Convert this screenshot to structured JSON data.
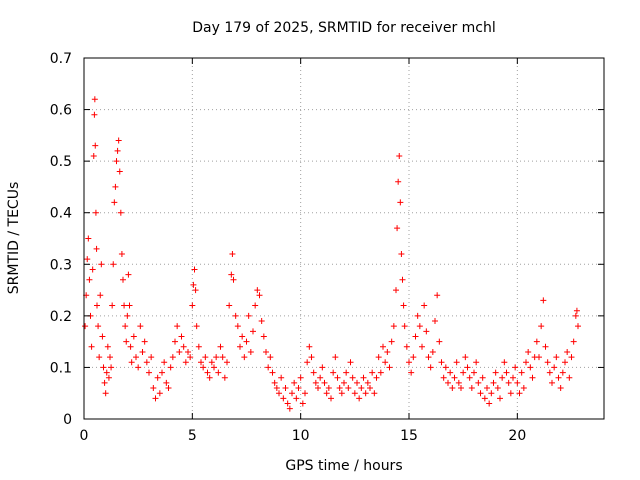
{
  "chart_data": {
    "type": "scatter",
    "title": "Day 179 of 2025, SRMTID for receiver mchl",
    "xlabel": "GPS time / hours",
    "ylabel": "SRMTID / TECUs",
    "xlim": [
      0,
      24
    ],
    "ylim": [
      0,
      0.7
    ],
    "xticks": [
      0,
      5,
      10,
      15,
      20
    ],
    "xtick_labels": [
      "0",
      "5",
      "10",
      "15",
      "20"
    ],
    "yticks": [
      0,
      0.1,
      0.2,
      0.3,
      0.4,
      0.5,
      0.6,
      0.7
    ],
    "ytick_labels": [
      "0",
      "0.1",
      "0.2",
      "0.3",
      "0.4",
      "0.5",
      "0.6",
      "0.7"
    ],
    "grid": true,
    "marker": "+",
    "marker_color": "#ff0000",
    "series": [
      {
        "name": "SRMTID",
        "points": [
          [
            0.05,
            0.18
          ],
          [
            0.1,
            0.24
          ],
          [
            0.15,
            0.31
          ],
          [
            0.2,
            0.35
          ],
          [
            0.25,
            0.27
          ],
          [
            0.3,
            0.2
          ],
          [
            0.35,
            0.14
          ],
          [
            0.4,
            0.29
          ],
          [
            0.45,
            0.51
          ],
          [
            0.48,
            0.59
          ],
          [
            0.5,
            0.62
          ],
          [
            0.52,
            0.53
          ],
          [
            0.55,
            0.4
          ],
          [
            0.58,
            0.33
          ],
          [
            0.6,
            0.22
          ],
          [
            0.65,
            0.18
          ],
          [
            0.7,
            0.12
          ],
          [
            0.75,
            0.24
          ],
          [
            0.8,
            0.3
          ],
          [
            0.85,
            0.16
          ],
          [
            0.9,
            0.1
          ],
          [
            0.95,
            0.07
          ],
          [
            1.0,
            0.05
          ],
          [
            1.05,
            0.09
          ],
          [
            1.1,
            0.14
          ],
          [
            1.15,
            0.08
          ],
          [
            1.2,
            0.12
          ],
          [
            1.25,
            0.1
          ],
          [
            1.3,
            0.22
          ],
          [
            1.35,
            0.3
          ],
          [
            1.4,
            0.42
          ],
          [
            1.45,
            0.45
          ],
          [
            1.5,
            0.5
          ],
          [
            1.55,
            0.52
          ],
          [
            1.6,
            0.54
          ],
          [
            1.65,
            0.48
          ],
          [
            1.7,
            0.4
          ],
          [
            1.75,
            0.32
          ],
          [
            1.8,
            0.27
          ],
          [
            1.85,
            0.22
          ],
          [
            1.9,
            0.18
          ],
          [
            1.95,
            0.15
          ],
          [
            2.0,
            0.2
          ],
          [
            2.05,
            0.28
          ],
          [
            2.1,
            0.22
          ],
          [
            2.15,
            0.14
          ],
          [
            2.2,
            0.11
          ],
          [
            2.3,
            0.16
          ],
          [
            2.4,
            0.12
          ],
          [
            2.5,
            0.1
          ],
          [
            2.6,
            0.18
          ],
          [
            2.7,
            0.13
          ],
          [
            2.8,
            0.15
          ],
          [
            2.9,
            0.11
          ],
          [
            3.0,
            0.09
          ],
          [
            3.1,
            0.12
          ],
          [
            3.2,
            0.06
          ],
          [
            3.3,
            0.04
          ],
          [
            3.4,
            0.08
          ],
          [
            3.5,
            0.05
          ],
          [
            3.6,
            0.09
          ],
          [
            3.7,
            0.11
          ],
          [
            3.8,
            0.07
          ],
          [
            3.9,
            0.06
          ],
          [
            4.0,
            0.1
          ],
          [
            4.1,
            0.12
          ],
          [
            4.2,
            0.15
          ],
          [
            4.3,
            0.18
          ],
          [
            4.4,
            0.13
          ],
          [
            4.5,
            0.16
          ],
          [
            4.6,
            0.14
          ],
          [
            4.7,
            0.11
          ],
          [
            4.8,
            0.13
          ],
          [
            4.9,
            0.12
          ],
          [
            5.0,
            0.22
          ],
          [
            5.05,
            0.26
          ],
          [
            5.1,
            0.29
          ],
          [
            5.15,
            0.25
          ],
          [
            5.2,
            0.18
          ],
          [
            5.3,
            0.14
          ],
          [
            5.4,
            0.11
          ],
          [
            5.5,
            0.1
          ],
          [
            5.6,
            0.12
          ],
          [
            5.7,
            0.09
          ],
          [
            5.8,
            0.08
          ],
          [
            5.9,
            0.11
          ],
          [
            6.0,
            0.1
          ],
          [
            6.1,
            0.12
          ],
          [
            6.2,
            0.09
          ],
          [
            6.3,
            0.14
          ],
          [
            6.4,
            0.12
          ],
          [
            6.5,
            0.08
          ],
          [
            6.6,
            0.11
          ],
          [
            6.7,
            0.22
          ],
          [
            6.8,
            0.28
          ],
          [
            6.85,
            0.32
          ],
          [
            6.9,
            0.27
          ],
          [
            7.0,
            0.2
          ],
          [
            7.1,
            0.18
          ],
          [
            7.2,
            0.14
          ],
          [
            7.3,
            0.16
          ],
          [
            7.4,
            0.12
          ],
          [
            7.5,
            0.15
          ],
          [
            7.6,
            0.2
          ],
          [
            7.7,
            0.13
          ],
          [
            7.8,
            0.17
          ],
          [
            7.9,
            0.22
          ],
          [
            8.0,
            0.25
          ],
          [
            8.1,
            0.24
          ],
          [
            8.2,
            0.19
          ],
          [
            8.3,
            0.16
          ],
          [
            8.4,
            0.13
          ],
          [
            8.5,
            0.1
          ],
          [
            8.6,
            0.12
          ],
          [
            8.7,
            0.09
          ],
          [
            8.8,
            0.07
          ],
          [
            8.9,
            0.06
          ],
          [
            9.0,
            0.05
          ],
          [
            9.1,
            0.08
          ],
          [
            9.2,
            0.04
          ],
          [
            9.3,
            0.06
          ],
          [
            9.4,
            0.03
          ],
          [
            9.5,
            0.02
          ],
          [
            9.6,
            0.05
          ],
          [
            9.7,
            0.07
          ],
          [
            9.8,
            0.04
          ],
          [
            9.9,
            0.06
          ],
          [
            10.0,
            0.08
          ],
          [
            10.1,
            0.03
          ],
          [
            10.2,
            0.05
          ],
          [
            10.3,
            0.11
          ],
          [
            10.4,
            0.14
          ],
          [
            10.5,
            0.12
          ],
          [
            10.6,
            0.09
          ],
          [
            10.7,
            0.07
          ],
          [
            10.8,
            0.06
          ],
          [
            10.9,
            0.08
          ],
          [
            11.0,
            0.1
          ],
          [
            11.1,
            0.07
          ],
          [
            11.2,
            0.05
          ],
          [
            11.3,
            0.06
          ],
          [
            11.4,
            0.04
          ],
          [
            11.5,
            0.09
          ],
          [
            11.6,
            0.12
          ],
          [
            11.7,
            0.08
          ],
          [
            11.8,
            0.06
          ],
          [
            11.9,
            0.05
          ],
          [
            12.0,
            0.07
          ],
          [
            12.1,
            0.09
          ],
          [
            12.2,
            0.06
          ],
          [
            12.3,
            0.11
          ],
          [
            12.4,
            0.08
          ],
          [
            12.5,
            0.05
          ],
          [
            12.6,
            0.07
          ],
          [
            12.7,
            0.04
          ],
          [
            12.8,
            0.06
          ],
          [
            12.9,
            0.08
          ],
          [
            13.0,
            0.05
          ],
          [
            13.1,
            0.07
          ],
          [
            13.2,
            0.06
          ],
          [
            13.3,
            0.09
          ],
          [
            13.4,
            0.05
          ],
          [
            13.5,
            0.08
          ],
          [
            13.6,
            0.12
          ],
          [
            13.7,
            0.09
          ],
          [
            13.8,
            0.14
          ],
          [
            13.9,
            0.11
          ],
          [
            14.0,
            0.13
          ],
          [
            14.1,
            0.1
          ],
          [
            14.2,
            0.15
          ],
          [
            14.3,
            0.18
          ],
          [
            14.4,
            0.25
          ],
          [
            14.45,
            0.37
          ],
          [
            14.5,
            0.46
          ],
          [
            14.55,
            0.51
          ],
          [
            14.6,
            0.42
          ],
          [
            14.65,
            0.32
          ],
          [
            14.7,
            0.27
          ],
          [
            14.75,
            0.22
          ],
          [
            14.8,
            0.18
          ],
          [
            14.9,
            0.14
          ],
          [
            15.0,
            0.11
          ],
          [
            15.1,
            0.09
          ],
          [
            15.2,
            0.12
          ],
          [
            15.3,
            0.16
          ],
          [
            15.4,
            0.2
          ],
          [
            15.5,
            0.18
          ],
          [
            15.6,
            0.14
          ],
          [
            15.7,
            0.22
          ],
          [
            15.8,
            0.17
          ],
          [
            15.9,
            0.12
          ],
          [
            16.0,
            0.1
          ],
          [
            16.1,
            0.13
          ],
          [
            16.2,
            0.19
          ],
          [
            16.3,
            0.24
          ],
          [
            16.4,
            0.15
          ],
          [
            16.5,
            0.11
          ],
          [
            16.6,
            0.08
          ],
          [
            16.7,
            0.1
          ],
          [
            16.8,
            0.07
          ],
          [
            16.9,
            0.09
          ],
          [
            17.0,
            0.06
          ],
          [
            17.1,
            0.08
          ],
          [
            17.2,
            0.11
          ],
          [
            17.3,
            0.07
          ],
          [
            17.4,
            0.06
          ],
          [
            17.5,
            0.09
          ],
          [
            17.6,
            0.12
          ],
          [
            17.7,
            0.1
          ],
          [
            17.8,
            0.08
          ],
          [
            17.9,
            0.06
          ],
          [
            18.0,
            0.09
          ],
          [
            18.1,
            0.11
          ],
          [
            18.2,
            0.07
          ],
          [
            18.3,
            0.05
          ],
          [
            18.4,
            0.08
          ],
          [
            18.5,
            0.04
          ],
          [
            18.6,
            0.06
          ],
          [
            18.7,
            0.03
          ],
          [
            18.8,
            0.05
          ],
          [
            18.9,
            0.07
          ],
          [
            19.0,
            0.09
          ],
          [
            19.1,
            0.06
          ],
          [
            19.2,
            0.04
          ],
          [
            19.3,
            0.08
          ],
          [
            19.4,
            0.11
          ],
          [
            19.5,
            0.09
          ],
          [
            19.6,
            0.07
          ],
          [
            19.7,
            0.05
          ],
          [
            19.8,
            0.08
          ],
          [
            19.9,
            0.1
          ],
          [
            20.0,
            0.07
          ],
          [
            20.1,
            0.05
          ],
          [
            20.2,
            0.09
          ],
          [
            20.3,
            0.06
          ],
          [
            20.4,
            0.11
          ],
          [
            20.5,
            0.13
          ],
          [
            20.6,
            0.1
          ],
          [
            20.7,
            0.08
          ],
          [
            20.8,
            0.12
          ],
          [
            20.9,
            0.15
          ],
          [
            21.0,
            0.12
          ],
          [
            21.1,
            0.18
          ],
          [
            21.2,
            0.23
          ],
          [
            21.3,
            0.14
          ],
          [
            21.4,
            0.11
          ],
          [
            21.5,
            0.09
          ],
          [
            21.6,
            0.07
          ],
          [
            21.7,
            0.1
          ],
          [
            21.8,
            0.12
          ],
          [
            21.9,
            0.08
          ],
          [
            22.0,
            0.06
          ],
          [
            22.1,
            0.09
          ],
          [
            22.2,
            0.11
          ],
          [
            22.3,
            0.13
          ],
          [
            22.4,
            0.08
          ],
          [
            22.5,
            0.12
          ],
          [
            22.6,
            0.15
          ],
          [
            22.7,
            0.2
          ],
          [
            22.75,
            0.21
          ],
          [
            22.8,
            0.18
          ]
        ]
      }
    ]
  }
}
